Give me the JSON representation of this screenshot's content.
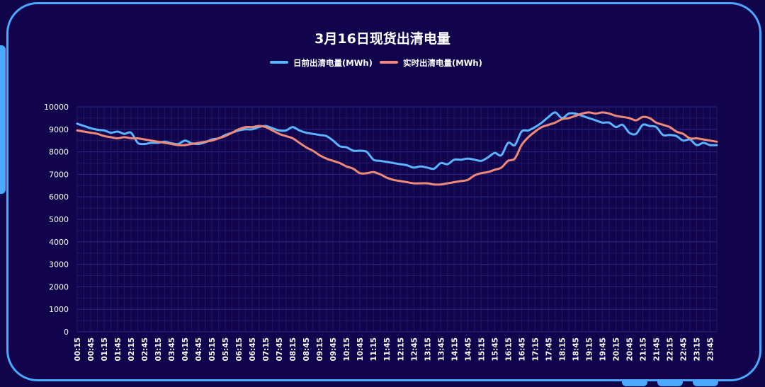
{
  "chart_data": {
    "type": "line",
    "title": "3月16日现货出清电量",
    "xlabel": "",
    "ylabel": "",
    "ylim": [
      0,
      10000
    ],
    "yticks": [
      0,
      1000,
      2000,
      3000,
      4000,
      5000,
      6000,
      7000,
      8000,
      9000,
      10000
    ],
    "grid": true,
    "legend_position": "top-center",
    "x_tick_labels": [
      "00:15",
      "00:45",
      "01:15",
      "01:45",
      "02:15",
      "02:45",
      "03:15",
      "03:45",
      "04:15",
      "04:45",
      "05:15",
      "05:45",
      "06:15",
      "06:45",
      "07:15",
      "07:45",
      "08:15",
      "08:45",
      "09:15",
      "09:45",
      "10:15",
      "10:45",
      "11:15",
      "11:45",
      "12:15",
      "12:45",
      "13:15",
      "13:45",
      "14:15",
      "14:45",
      "15:15",
      "15:45",
      "16:15",
      "16:45",
      "17:15",
      "17:45",
      "18:15",
      "18:45",
      "19:15",
      "19:45",
      "20:15",
      "20:45",
      "21:15",
      "21:45",
      "22:15",
      "22:45",
      "23:15",
      "23:45"
    ],
    "x": [
      "00:15",
      "00:30",
      "00:45",
      "01:00",
      "01:15",
      "01:30",
      "01:45",
      "02:00",
      "02:15",
      "02:30",
      "02:45",
      "03:00",
      "03:15",
      "03:30",
      "03:45",
      "04:00",
      "04:15",
      "04:30",
      "04:45",
      "05:00",
      "05:15",
      "05:30",
      "05:45",
      "06:00",
      "06:15",
      "06:30",
      "06:45",
      "07:00",
      "07:15",
      "07:30",
      "07:45",
      "08:00",
      "08:15",
      "08:30",
      "08:45",
      "09:00",
      "09:15",
      "09:30",
      "09:45",
      "10:00",
      "10:15",
      "10:30",
      "10:45",
      "11:00",
      "11:15",
      "11:30",
      "11:45",
      "12:00",
      "12:15",
      "12:30",
      "12:45",
      "13:00",
      "13:15",
      "13:30",
      "13:45",
      "14:00",
      "14:15",
      "14:30",
      "14:45",
      "15:00",
      "15:15",
      "15:30",
      "15:45",
      "16:00",
      "16:15",
      "16:30",
      "16:45",
      "17:00",
      "17:15",
      "17:30",
      "17:45",
      "18:00",
      "18:15",
      "18:30",
      "18:45",
      "19:00",
      "19:15",
      "19:30",
      "19:45",
      "20:00",
      "20:15",
      "20:30",
      "20:45",
      "21:00",
      "21:15",
      "21:30",
      "21:45",
      "22:00",
      "22:15",
      "22:30",
      "22:45",
      "23:00",
      "23:15",
      "23:30",
      "23:45",
      "24:00"
    ],
    "series": [
      {
        "name": "日前出清电量(MWh)",
        "color": "#5ab4ff",
        "values": [
          9250,
          9150,
          9050,
          8980,
          8950,
          8850,
          8900,
          8800,
          8850,
          8400,
          8350,
          8400,
          8400,
          8450,
          8380,
          8350,
          8500,
          8380,
          8350,
          8420,
          8550,
          8600,
          8750,
          8850,
          8950,
          9000,
          9000,
          9100,
          9150,
          9050,
          8950,
          8950,
          9100,
          8950,
          8850,
          8800,
          8750,
          8700,
          8500,
          8250,
          8200,
          8050,
          8050,
          8000,
          7650,
          7600,
          7550,
          7500,
          7450,
          7400,
          7300,
          7350,
          7300,
          7250,
          7500,
          7450,
          7650,
          7650,
          7700,
          7650,
          7600,
          7750,
          7950,
          7850,
          8400,
          8300,
          8900,
          8950,
          9100,
          9300,
          9550,
          9750,
          9500,
          9700,
          9700,
          9600,
          9500,
          9400,
          9300,
          9300,
          9100,
          9200,
          8850,
          8800,
          9200,
          9150,
          9100,
          8750,
          8750,
          8700,
          8500,
          8550,
          8300,
          8400,
          8300,
          8300
        ]
      },
      {
        "name": "实时出清电量(MWh)",
        "color": "#f08a78",
        "values": [
          8950,
          8900,
          8850,
          8800,
          8700,
          8650,
          8600,
          8650,
          8600,
          8600,
          8550,
          8500,
          8450,
          8400,
          8350,
          8300,
          8300,
          8350,
          8400,
          8450,
          8500,
          8600,
          8700,
          8850,
          9000,
          9100,
          9100,
          9150,
          9100,
          8950,
          8800,
          8700,
          8600,
          8400,
          8200,
          8050,
          7850,
          7700,
          7600,
          7500,
          7350,
          7250,
          7050,
          7050,
          7100,
          7000,
          6850,
          6750,
          6700,
          6650,
          6600,
          6600,
          6600,
          6550,
          6550,
          6600,
          6650,
          6700,
          6750,
          6950,
          7050,
          7100,
          7200,
          7300,
          7600,
          7700,
          8300,
          8650,
          8900,
          9100,
          9200,
          9300,
          9450,
          9500,
          9600,
          9700,
          9750,
          9700,
          9750,
          9700,
          9600,
          9550,
          9500,
          9400,
          9550,
          9500,
          9300,
          9200,
          9100,
          8900,
          8800,
          8600,
          8600,
          8550,
          8500,
          8450
        ]
      }
    ]
  }
}
